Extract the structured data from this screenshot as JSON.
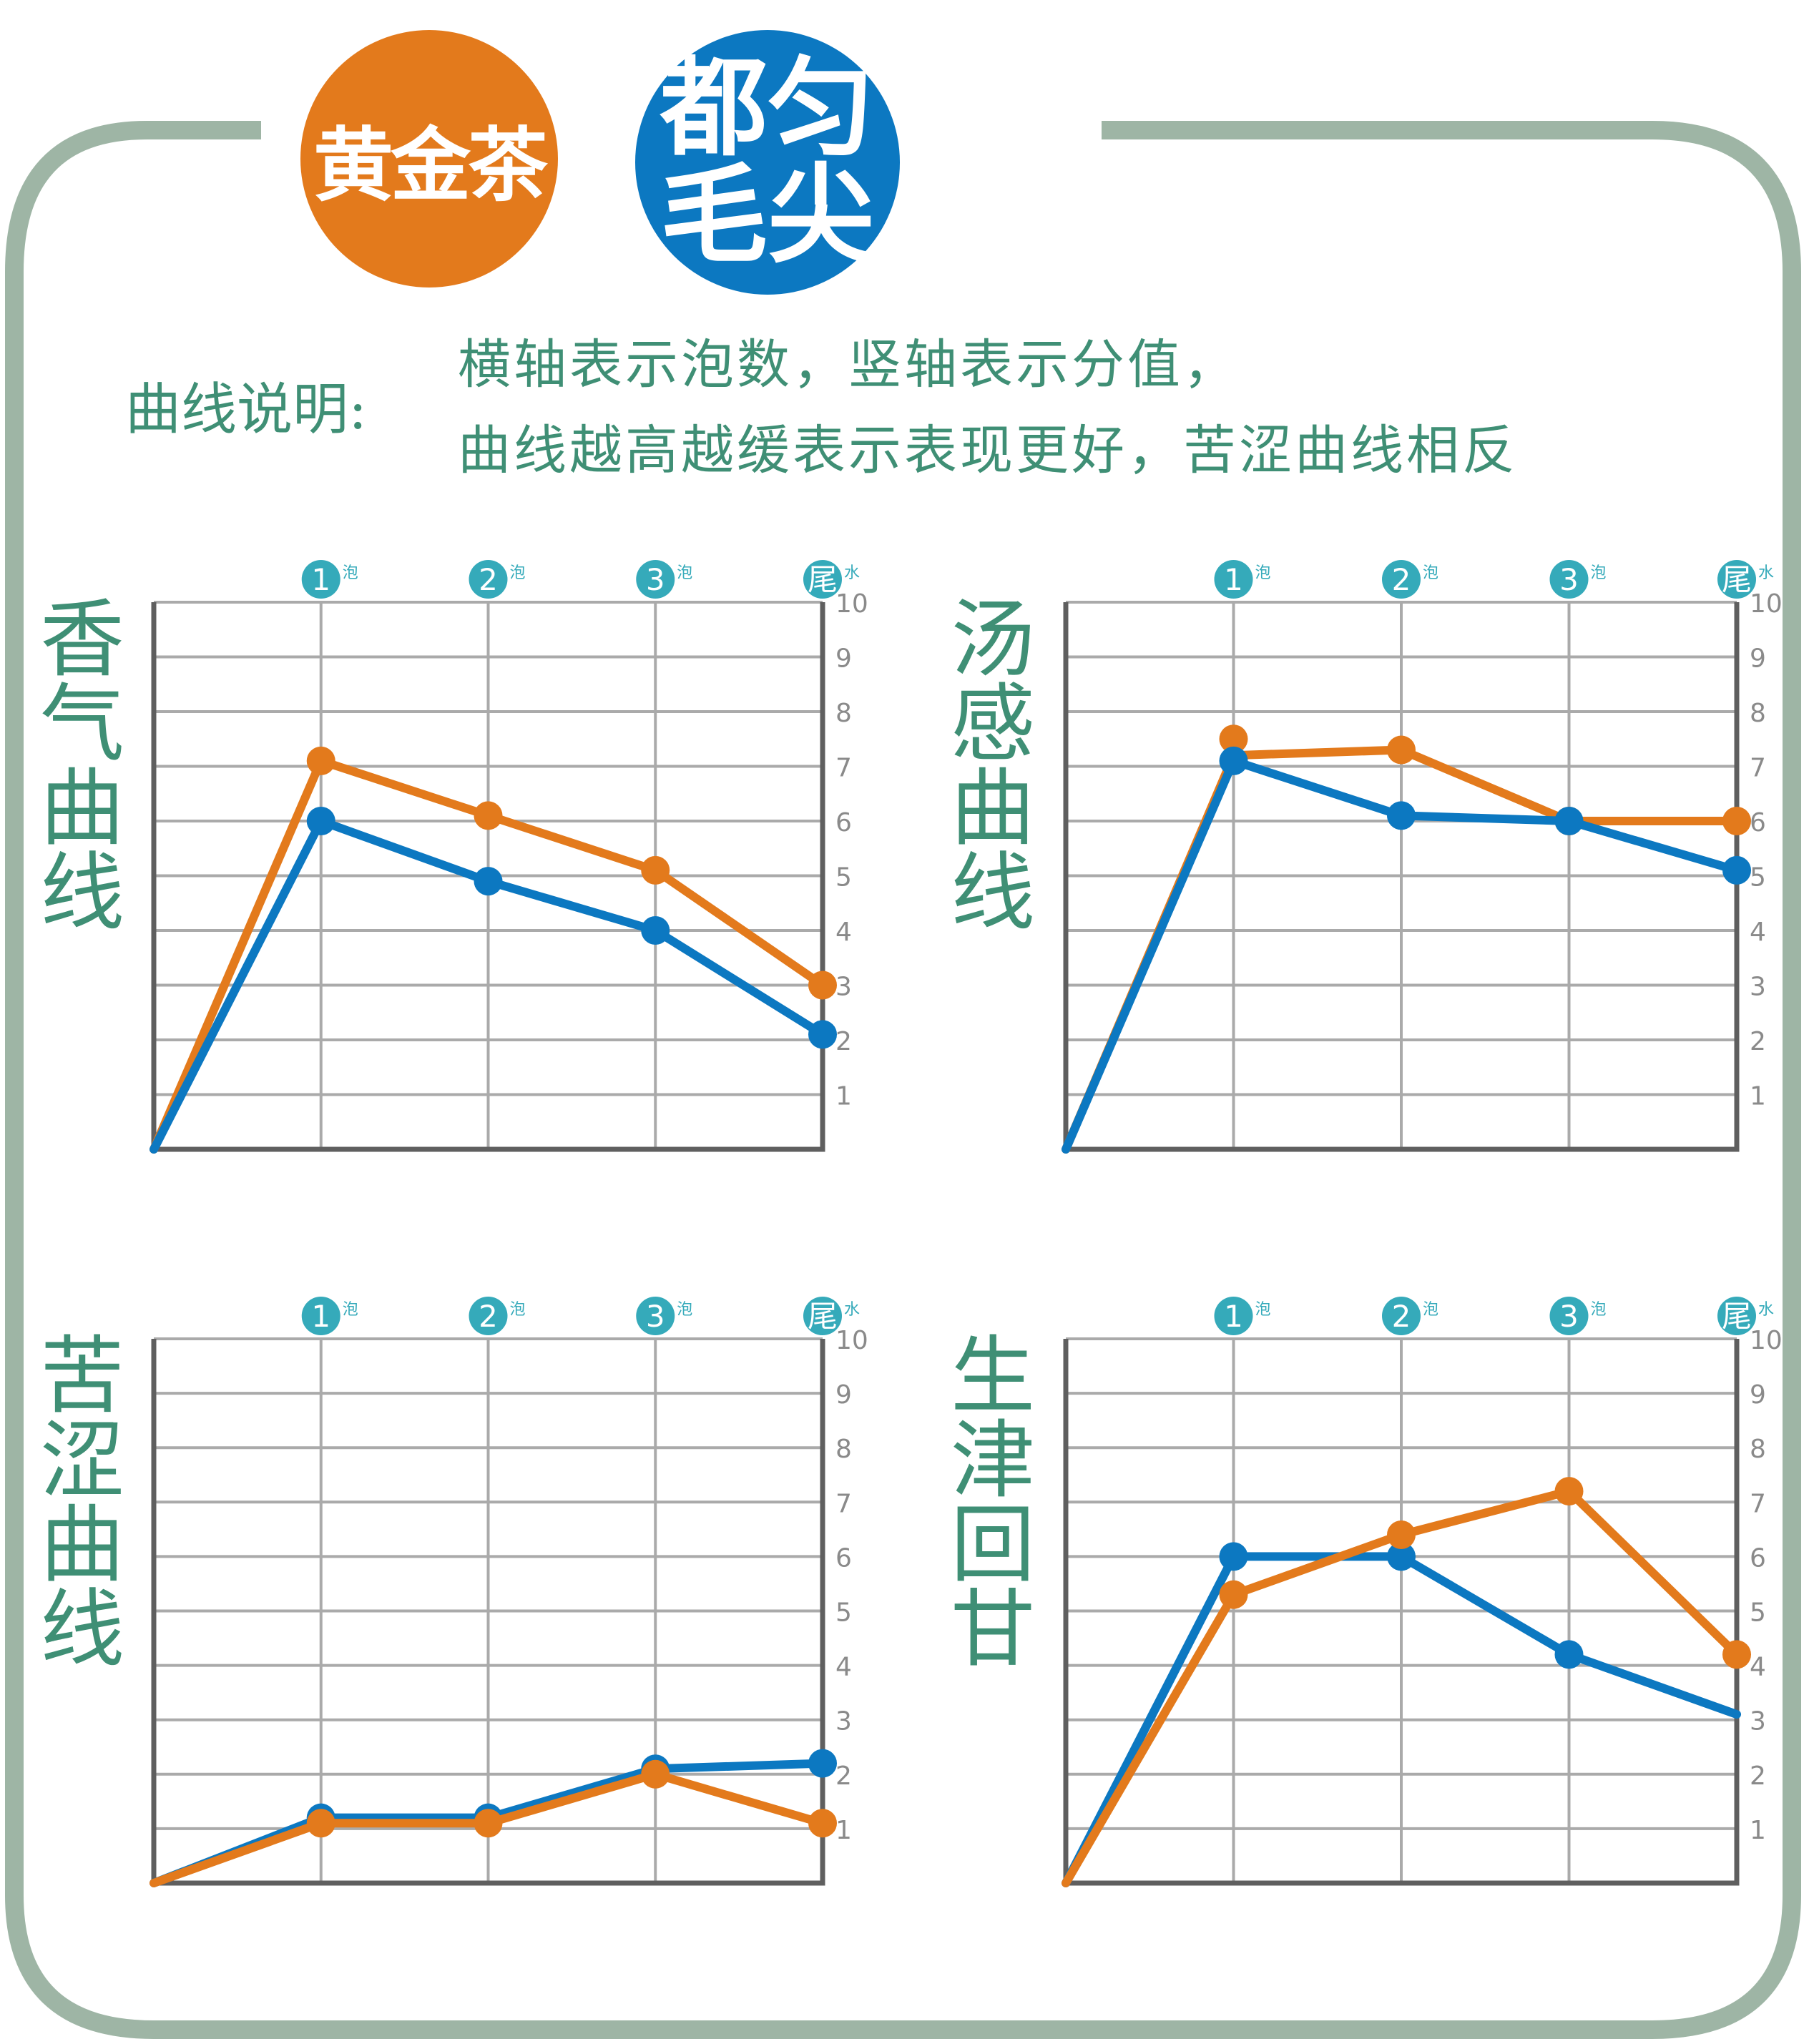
{
  "header": {
    "badge_gold": "黄金茶",
    "badge_blue": [
      "都",
      "匀",
      "毛",
      "尖"
    ]
  },
  "legend": {
    "heading": "曲线说明:",
    "line1": "横轴表示泡数，竖轴表示分值，",
    "line2": "曲线越高越缓表示表现更好，苦涩曲线相反"
  },
  "colors": {
    "frame": "#9EB5A5",
    "orange": "#E37A1C",
    "blue": "#0C78C1",
    "title_green": "#3F8F75",
    "marker_teal": "#35AABA",
    "grid": "#AAAAAA",
    "axis": "#5F5F5F",
    "tick_text": "#8A8A8A"
  },
  "axis_common": {
    "x_markers": [
      {
        "num": "1",
        "suffix": "泡"
      },
      {
        "num": "2",
        "suffix": "泡"
      },
      {
        "num": "3",
        "suffix": "泡"
      },
      {
        "num": "尾",
        "suffix": "水"
      }
    ],
    "y_ticks": [
      "1",
      "2",
      "3",
      "4",
      "5",
      "6",
      "7",
      "8",
      "9",
      "10"
    ]
  },
  "chart_data": [
    {
      "type": "line",
      "title": "香气曲线",
      "x": [
        0,
        1,
        2,
        3,
        4
      ],
      "ylim": [
        0,
        10
      ],
      "grid": true,
      "series": [
        {
          "color": "orange",
          "values": [
            0,
            7.1,
            6.1,
            5.1,
            3.0
          ],
          "markers": [
            1,
            2,
            3,
            4
          ]
        },
        {
          "color": "blue",
          "values": [
            0,
            6.0,
            4.9,
            4.0,
            2.1
          ],
          "markers": [
            1,
            2,
            3,
            4
          ]
        }
      ]
    },
    {
      "type": "line",
      "title": "汤感曲线",
      "x": [
        0,
        1,
        2,
        3,
        4
      ],
      "ylim": [
        0,
        10
      ],
      "grid": true,
      "series": [
        {
          "color": "orange",
          "values": [
            0,
            7.2,
            7.3,
            6.0,
            6.0
          ],
          "markers": [
            2,
            3,
            4
          ],
          "extra_marker": [
            1,
            7.5
          ]
        },
        {
          "color": "blue",
          "values": [
            0,
            7.1,
            6.1,
            6.0,
            5.1
          ],
          "markers": [
            1,
            2,
            3,
            4
          ]
        }
      ]
    },
    {
      "type": "line",
      "title": "苦涩曲线",
      "x": [
        0,
        1,
        2,
        3,
        4
      ],
      "ylim": [
        0,
        10
      ],
      "grid": true,
      "series": [
        {
          "color": "blue",
          "values": [
            0,
            1.2,
            1.2,
            2.1,
            2.2
          ],
          "markers": [
            1,
            2,
            3,
            4
          ]
        },
        {
          "color": "orange",
          "values": [
            0,
            1.1,
            1.1,
            2.0,
            1.1
          ],
          "markers": [
            1,
            2,
            3,
            4
          ]
        }
      ]
    },
    {
      "type": "line",
      "title": "生津回甘",
      "x": [
        0,
        1,
        2,
        3,
        4
      ],
      "ylim": [
        0,
        10
      ],
      "grid": true,
      "series": [
        {
          "color": "blue",
          "values": [
            0,
            6.0,
            6.0,
            4.2,
            3.1
          ],
          "markers": [
            1,
            2,
            3
          ]
        },
        {
          "color": "orange",
          "values": [
            0,
            5.3,
            6.4,
            7.2,
            4.2
          ],
          "markers": [
            1,
            2,
            3,
            4
          ]
        }
      ]
    }
  ]
}
